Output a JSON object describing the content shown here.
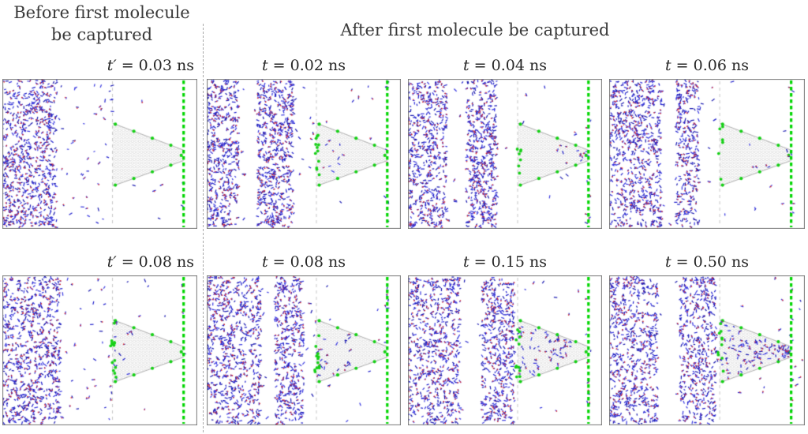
{
  "titles": {
    "before_line1": "Before first molecule",
    "before_line2": "be captured",
    "after": "After first molecule be captured"
  },
  "colors": {
    "particle_blue": "#2222cc",
    "particle_blue2": "#3a3ae0",
    "particle_blue3": "#1b1bb0",
    "particle_red": "#e03030",
    "green": "#16d016",
    "green_line": "#00d600",
    "cone_gray": "#cccccc",
    "cone_edge": "#b0b0b0",
    "mouth_line": "#c6c6c6",
    "border": "#777777"
  },
  "panels": [
    {
      "var": "t′",
      "rest": " = 0.03 ns",
      "params": {
        "seed": 11,
        "bands": [
          [
            0,
            0.28,
            700
          ]
        ],
        "scatter": 45,
        "outer": 5,
        "mouth_green": 0,
        "cone": {
          "count": 0,
          "zone": [
            0,
            0
          ]
        },
        "right_dots": 2,
        "past_dots": 0
      }
    },
    {
      "var": "t",
      "rest": " = 0.02 ns",
      "params": {
        "seed": 22,
        "bands": [
          [
            0,
            0.165,
            430
          ],
          [
            0.26,
            0.45,
            520
          ]
        ],
        "scatter": 28,
        "outer": 8,
        "mouth_green": 12,
        "cone": {
          "count": 10,
          "zone": [
            0,
            0.4
          ]
        },
        "right_dots": 8,
        "past_dots": 0
      }
    },
    {
      "var": "t",
      "rest": " = 0.04 ns",
      "params": {
        "seed": 33,
        "bands": [
          [
            0,
            0.2,
            500
          ],
          [
            0.3,
            0.46,
            440
          ]
        ],
        "scatter": 22,
        "outer": 8,
        "mouth_green": 7,
        "cone": {
          "count": 12,
          "zone": [
            0.55,
            1
          ]
        },
        "right_dots": 9,
        "past_dots": 0
      }
    },
    {
      "var": "t",
      "rest": " = 0.06 ns",
      "params": {
        "seed": 44,
        "bands": [
          [
            0,
            0.27,
            640
          ],
          [
            0.34,
            0.46,
            280
          ]
        ],
        "scatter": 20,
        "outer": 7,
        "mouth_green": 6,
        "cone": {
          "count": 7,
          "zone": [
            0.4,
            1
          ]
        },
        "right_dots": 6,
        "past_dots": 0
      }
    },
    {
      "var": "t′",
      "rest": " = 0.08 ns",
      "params": {
        "seed": 55,
        "bands": [
          [
            0,
            0.3,
            700
          ]
        ],
        "scatter": 38,
        "outer": 6,
        "mouth_green": 14,
        "cone": {
          "count": 14,
          "zone": [
            0,
            0.35
          ]
        },
        "right_dots": 3,
        "past_dots": 0
      }
    },
    {
      "var": "t",
      "rest": " = 0.08 ns",
      "params": {
        "seed": 66,
        "bands": [
          [
            0,
            0.28,
            620
          ],
          [
            0.35,
            0.5,
            380
          ]
        ],
        "scatter": 20,
        "outer": 8,
        "mouth_green": 12,
        "cone": {
          "count": 28,
          "zone": [
            0,
            0.5
          ]
        },
        "right_dots": 8,
        "past_dots": 0
      }
    },
    {
      "var": "t",
      "rest": " = 0.15 ns",
      "params": {
        "seed": 77,
        "bands": [
          [
            0,
            0.27,
            600
          ],
          [
            0.38,
            0.55,
            420
          ]
        ],
        "scatter": 16,
        "outer": 8,
        "mouth_green": 12,
        "cone": {
          "count": 65,
          "zone": [
            0,
            0.75
          ]
        },
        "right_dots": 9,
        "past_dots": 0
      }
    },
    {
      "var": "t",
      "rest": " = 0.50 ns",
      "params": {
        "seed": 88,
        "bands": [
          [
            0,
            0.25,
            580
          ],
          [
            0.36,
            0.55,
            430
          ]
        ],
        "scatter": 16,
        "outer": 8,
        "mouth_green": 10,
        "cone": {
          "count": 115,
          "zone": [
            0,
            1
          ]
        },
        "right_dots": 10,
        "past_dots": 6
      }
    }
  ]
}
